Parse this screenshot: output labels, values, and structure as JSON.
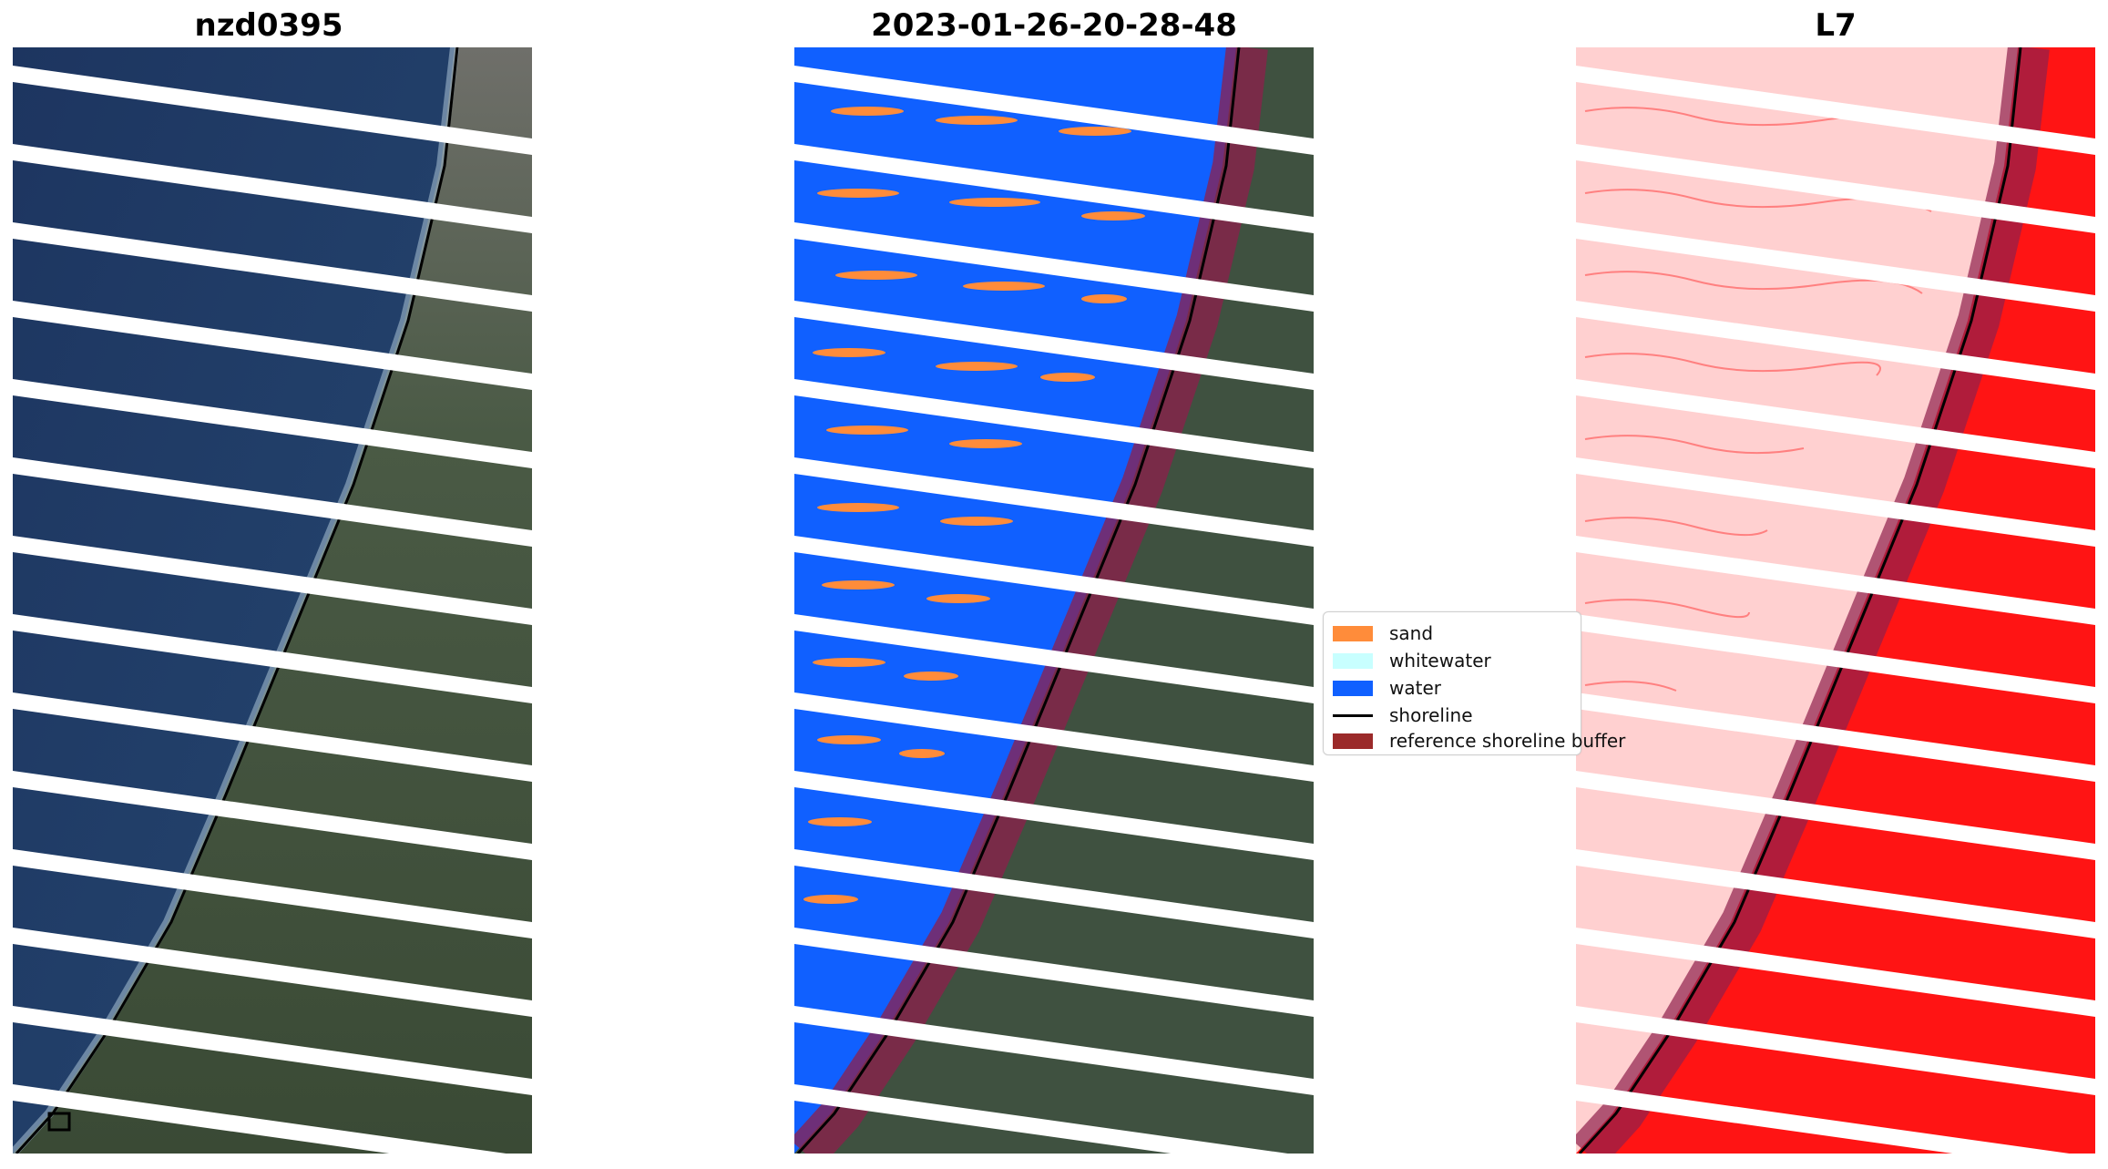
{
  "panels": [
    {
      "title": "nzd0395"
    },
    {
      "title": "2023-01-26-20-28-48"
    },
    {
      "title": "L7"
    }
  ],
  "legend": {
    "items": [
      {
        "label": "sand",
        "color": "#ff8c3a"
      },
      {
        "label": "whitewater",
        "color": "#c8ffff"
      },
      {
        "label": "water",
        "color": "#1060ff"
      },
      {
        "label": "shoreline",
        "color": "#000000"
      },
      {
        "label": "reference shoreline buffer",
        "color": "#9b2a2a"
      }
    ]
  },
  "colors": {
    "ocean": "#1f3a62",
    "land": "#3c4f3a",
    "water_class": "#1060ff",
    "sand_class": "#ff8c3a",
    "buffer": "#8e1f4b",
    "index_sea": "#ffd0d0",
    "index_land": "#ff1414"
  }
}
